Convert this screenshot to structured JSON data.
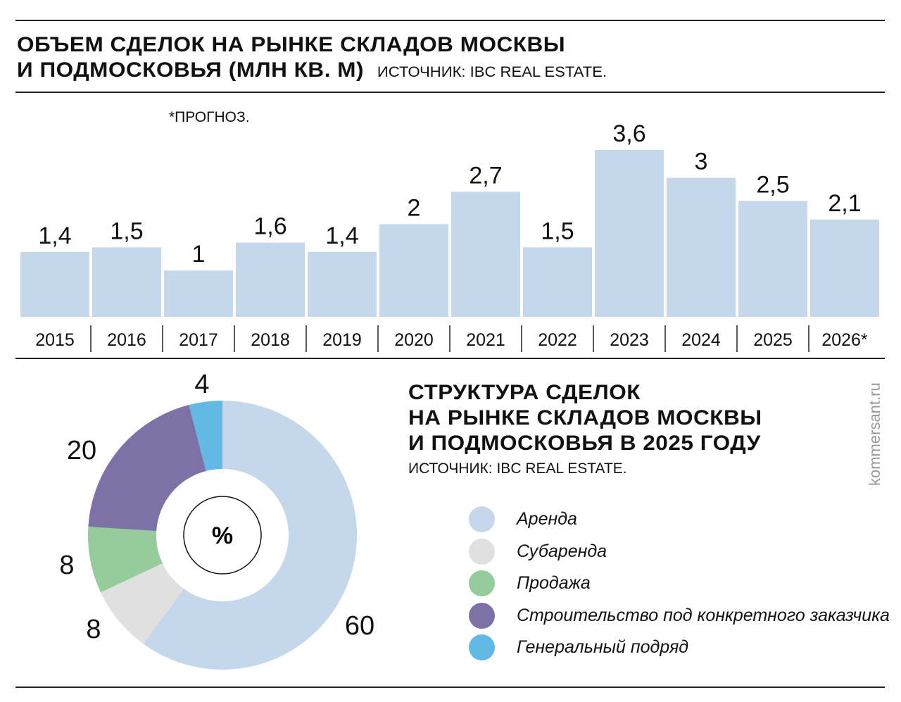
{
  "header": {
    "title_line1": "ОБЪЕМ СДЕЛОК НА РЫНКЕ СКЛАДОВ МОСКВЫ",
    "title_line2": "И ПОДМОСКОВЬЯ (МЛН КВ. М)",
    "source": "ИСТОЧНИК: IBC REAL ESTATE.",
    "note": "*ПРОГНОЗ."
  },
  "section2": {
    "title_line1": "СТРУКТУРА СДЕЛОК",
    "title_line2": "НА РЫНКЕ СКЛАДОВ МОСКВЫ",
    "title_line3": "И ПОДМОСКОВЬЯ В 2025 ГОДУ",
    "source": "ИСТОЧНИК: IBC REAL ESTATE.",
    "center_label": "%"
  },
  "brand": "kommersant.ru",
  "chart_data": [
    {
      "type": "bar",
      "title": "ОБЪЕМ СДЕЛОК НА РЫНКЕ СКЛАДОВ МОСКВЫ И ПОДМОСКОВЬЯ (МЛН КВ. М)",
      "categories": [
        "2015",
        "2016",
        "2017",
        "2018",
        "2019",
        "2020",
        "2021",
        "2022",
        "2023",
        "2024",
        "2025",
        "2026*"
      ],
      "values": [
        1.4,
        1.5,
        1,
        1.6,
        1.4,
        2,
        2.7,
        1.5,
        3.6,
        3,
        2.5,
        2.1
      ],
      "labels": [
        "1,4",
        "1,5",
        "1",
        "1,6",
        "1,4",
        "2",
        "2,7",
        "1,5",
        "3,6",
        "3",
        "2,5",
        "2,1"
      ],
      "color": "#c5d7ea",
      "ylim": [
        0,
        3.6
      ],
      "grid": false
    },
    {
      "type": "pie",
      "title": "СТРУКТУРА СДЕЛОК НА РЫНКЕ СКЛАДОВ МОСКВЫ И ПОДМОСКОВЬЯ В 2025 ГОДУ",
      "unit": "%",
      "slices": [
        {
          "name": "Аренда",
          "value": 60,
          "color": "#c5d7ea"
        },
        {
          "name": "Субаренда",
          "value": 8,
          "color": "#e0e0e0"
        },
        {
          "name": "Продажа",
          "value": 8,
          "color": "#96cb9b"
        },
        {
          "name": "Строительство под конкретного заказчика",
          "value": 20,
          "color": "#7e71a8"
        },
        {
          "name": "Генеральный подряд",
          "value": 4,
          "color": "#62b9e3"
        }
      ],
      "legend": "right"
    }
  ]
}
